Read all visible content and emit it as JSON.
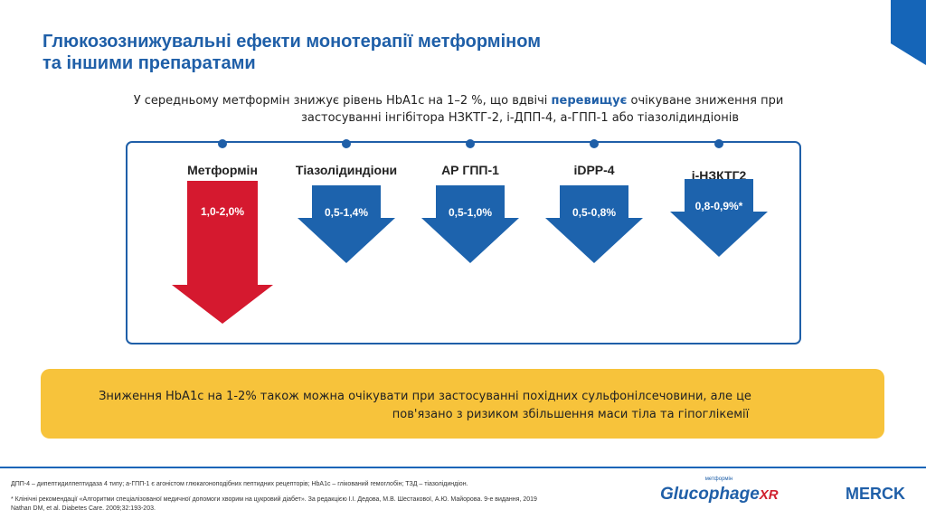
{
  "title": [
    "Глюкозознижувальні ефекти монотерапії метформіном",
    "та іншими препаратами"
  ],
  "subtitle": {
    "line1": {
      "before": "У середньому метформін знижує рівень HbA1c на 1–2 %, що вдвічі ",
      "emphasis": "перевищує",
      "after": " очікуване зниження при"
    },
    "line2": "застосуванні інгібітора НЗКТГ-2, і-ДПП-4, а-ГПП-1 або тіазолідиндіонів"
  },
  "drugs": [
    {
      "name": "Метформін",
      "effect": "1,0-2,0%"
    },
    {
      "name": "Тіазолідиндіони",
      "effect": "0,5-1,4%"
    },
    {
      "name": "АР ГПП-1",
      "effect": "0,5-1,0%"
    },
    {
      "name": "iDPP-4",
      "effect": "0,5-0,8%"
    },
    {
      "name": "i-НЗКТГ2",
      "effect": "0,8-0,9%*"
    }
  ],
  "note": [
    "Зниження HbA1c на 1-2% також можна очікувати при застосуванні  похідних сульфонілсечовини, але це",
    "пов'язано з ризиком збільшення маси тіла та гіпоглікемії"
  ],
  "footnotes": [
    "ДПП-4 – дипептидилпептидаза 4 типу; а-ГПП-1 є агоністом глюкагоноподібних пептидних рецепторів; HbA1c – глікований гемоглобін; ТЗД – тіазолідиндіон.",
    "* Клінічні рекомендації «Алгоритми спеціалізованої медичної допомоги хворим на цукровий діабет». За редакцією І.І. Дедова, М.В. Шестакової, А.Ю. Майорова. 9-е видання, 2019",
    "Nathan DM, et al. Diabetes Care. 2009;32:193-203."
  ],
  "logos": {
    "product_top": "метформін",
    "product": "Glucophage",
    "product_suffix": "XR",
    "company": "MERCK"
  }
}
